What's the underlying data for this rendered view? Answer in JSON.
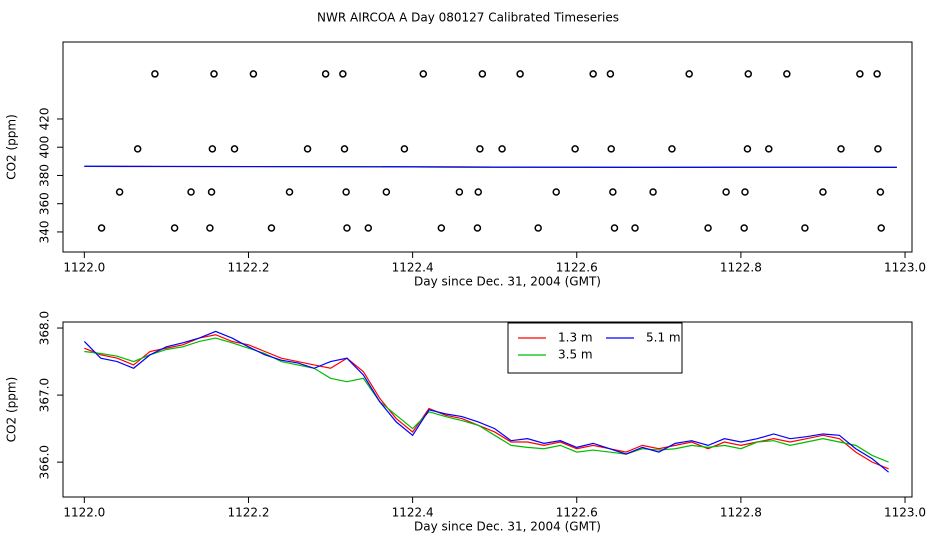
{
  "title": "NWR AIRCOA A  Day 080127  Calibrated Timeseries",
  "chart_data": [
    {
      "type": "line",
      "xlabel": "Day since Dec. 31, 2004 (GMT)",
      "ylabel": "CO2 (ppm)",
      "xlim": [
        1121.974,
        1123.0085
      ],
      "ylim": [
        325.8,
        474.5
      ],
      "xticks": [
        {
          "value": 1122,
          "label": "1122.0"
        },
        1122.2,
        1122.4,
        1122.6,
        1122.8,
        {
          "value": 1123,
          "label": "1123.0"
        }
      ],
      "yticks": [
        340,
        360,
        380,
        400,
        420
      ],
      "series": [
        {
          "color": "#000000",
          "marker": "open-circle",
          "x": [
            1122.086,
            1122.158,
            1122.206,
            1122.294,
            1122.315,
            1122.413,
            1122.485,
            1122.531,
            1122.62,
            1122.641,
            1122.737,
            1122.809,
            1122.856,
            1122.945,
            1122.966
          ],
          "values": [
            451.9,
            451.9,
            451.9,
            451.9,
            451.9,
            451.9,
            451.9,
            451.9,
            451.9,
            451.9,
            451.9,
            451.9,
            451.9,
            451.9,
            451.9
          ]
        },
        {
          "color": "#000000",
          "marker": "open-circle",
          "x": [
            1122.065,
            1122.156,
            1122.183,
            1122.272,
            1122.317,
            1122.39,
            1122.482,
            1122.509,
            1122.598,
            1122.642,
            1122.716,
            1122.808,
            1122.834,
            1122.922,
            1122.967
          ],
          "values": [
            398.8,
            398.8,
            398.8,
            398.8,
            398.8,
            398.8,
            398.8,
            398.8,
            398.8,
            398.8,
            398.8,
            398.8,
            398.8,
            398.8,
            398.8
          ]
        },
        {
          "color": "#000000",
          "marker": "open-circle",
          "x": [
            1122.043,
            1122.13,
            1122.155,
            1122.25,
            1122.319,
            1122.368,
            1122.457,
            1122.48,
            1122.575,
            1122.644,
            1122.693,
            1122.782,
            1122.805,
            1122.9,
            1122.97
          ],
          "values": [
            368.3,
            368.3,
            368.3,
            368.3,
            368.3,
            368.3,
            368.3,
            368.3,
            368.3,
            368.3,
            368.3,
            368.3,
            368.3,
            368.3,
            368.3
          ]
        },
        {
          "color": "#000000",
          "marker": "open-circle",
          "x": [
            1122.021,
            1122.11,
            1122.153,
            1122.228,
            1122.32,
            1122.346,
            1122.435,
            1122.479,
            1122.553,
            1122.646,
            1122.671,
            1122.76,
            1122.804,
            1122.878,
            1122.971
          ],
          "values": [
            342.8,
            342.8,
            342.8,
            342.8,
            342.8,
            342.8,
            342.8,
            342.8,
            342.8,
            342.8,
            342.8,
            342.8,
            342.8,
            342.8,
            342.8
          ]
        },
        {
          "color": "#ff0000",
          "x": [
            1122.0,
            1122.1,
            1122.2,
            1122.3,
            1122.4,
            1122.5,
            1122.6,
            1122.7,
            1122.8,
            1122.9,
            1122.99
          ],
          "values": [
            386.4,
            386.3,
            386.3,
            386.2,
            386.1,
            385.9,
            385.8,
            385.7,
            385.8,
            385.8,
            385.7
          ]
        },
        {
          "color": "#00bb00",
          "x": [
            1122.0,
            1122.1,
            1122.2,
            1122.3,
            1122.4,
            1122.5,
            1122.6,
            1122.7,
            1122.8,
            1122.9,
            1122.99
          ],
          "values": [
            386.4,
            386.4,
            386.3,
            386.2,
            386.1,
            385.9,
            385.8,
            385.7,
            385.8,
            385.8,
            385.7
          ]
        },
        {
          "color": "#0000ff",
          "x": [
            1122.0,
            1122.1,
            1122.2,
            1122.3,
            1122.4,
            1122.5,
            1122.6,
            1122.7,
            1122.8,
            1122.9,
            1122.99
          ],
          "values": [
            386.5,
            386.4,
            386.3,
            386.2,
            386.1,
            385.9,
            385.8,
            385.7,
            385.8,
            385.8,
            385.7
          ]
        }
      ]
    },
    {
      "type": "line",
      "xlabel": "Day since Dec. 31, 2004 (GMT)",
      "ylabel": "CO2 (ppm)",
      "xlim": [
        1121.974,
        1123.0085
      ],
      "ylim": [
        365.48,
        368.09
      ],
      "xticks": [
        {
          "value": 1122,
          "label": "1122.0"
        },
        1122.2,
        1122.4,
        1122.6,
        1122.8,
        {
          "value": 1123,
          "label": "1123.0"
        }
      ],
      "yticks": [
        {
          "value": 366,
          "label": "366.0"
        },
        {
          "value": 367,
          "label": "367.0"
        },
        {
          "value": 368,
          "label": "368.0"
        }
      ],
      "legend": "top",
      "x": [
        1122.0,
        1122.02,
        1122.04,
        1122.06,
        1122.08,
        1122.1,
        1122.12,
        1122.14,
        1122.16,
        1122.18,
        1122.2,
        1122.22,
        1122.24,
        1122.26,
        1122.28,
        1122.3,
        1122.32,
        1122.34,
        1122.36,
        1122.38,
        1122.4,
        1122.42,
        1122.44,
        1122.46,
        1122.48,
        1122.5,
        1122.52,
        1122.54,
        1122.56,
        1122.58,
        1122.6,
        1122.62,
        1122.64,
        1122.66,
        1122.68,
        1122.7,
        1122.72,
        1122.74,
        1122.76,
        1122.78,
        1122.8,
        1122.82,
        1122.84,
        1122.86,
        1122.88,
        1122.9,
        1122.92,
        1122.94,
        1122.96,
        1122.98
      ],
      "series": [
        {
          "name": "1.3 m",
          "color": "#ff0000",
          "values": [
            367.7,
            367.6,
            367.55,
            367.45,
            367.65,
            367.7,
            367.75,
            367.85,
            367.9,
            367.8,
            367.75,
            367.65,
            367.55,
            367.5,
            367.45,
            367.4,
            367.55,
            367.35,
            366.95,
            366.65,
            366.45,
            366.8,
            366.7,
            366.65,
            366.55,
            366.45,
            366.3,
            366.3,
            366.25,
            366.3,
            366.2,
            366.25,
            366.2,
            366.15,
            366.25,
            366.2,
            366.25,
            366.3,
            366.2,
            366.3,
            366.25,
            366.3,
            366.35,
            366.3,
            366.35,
            366.4,
            366.35,
            366.15,
            366.0,
            365.9
          ]
        },
        {
          "name": "3.5 m",
          "color": "#00bb00",
          "values": [
            367.65,
            367.62,
            367.58,
            367.5,
            367.6,
            367.68,
            367.72,
            367.8,
            367.85,
            367.78,
            367.7,
            367.62,
            367.5,
            367.45,
            367.4,
            367.25,
            367.2,
            367.25,
            366.9,
            366.7,
            366.5,
            366.75,
            366.68,
            366.62,
            366.55,
            366.4,
            366.25,
            366.22,
            366.2,
            366.25,
            366.15,
            366.18,
            366.15,
            366.12,
            366.2,
            366.18,
            366.2,
            366.25,
            366.22,
            366.25,
            366.2,
            366.3,
            366.32,
            366.25,
            366.3,
            366.35,
            366.3,
            366.25,
            366.1,
            366.0
          ]
        },
        {
          "name": "5.1 m",
          "color": "#0000ff",
          "values": [
            367.8,
            367.55,
            367.5,
            367.4,
            367.6,
            367.72,
            367.78,
            367.85,
            367.95,
            367.85,
            367.72,
            367.6,
            367.52,
            367.48,
            367.4,
            367.5,
            367.55,
            367.3,
            366.9,
            366.6,
            366.4,
            366.78,
            366.72,
            366.68,
            366.6,
            366.5,
            366.32,
            366.35,
            366.28,
            366.32,
            366.22,
            366.28,
            366.2,
            366.12,
            366.22,
            366.15,
            366.28,
            366.32,
            366.25,
            366.35,
            366.3,
            366.35,
            366.42,
            366.35,
            366.38,
            366.42,
            366.4,
            366.2,
            366.05,
            365.85
          ]
        }
      ]
    }
  ]
}
